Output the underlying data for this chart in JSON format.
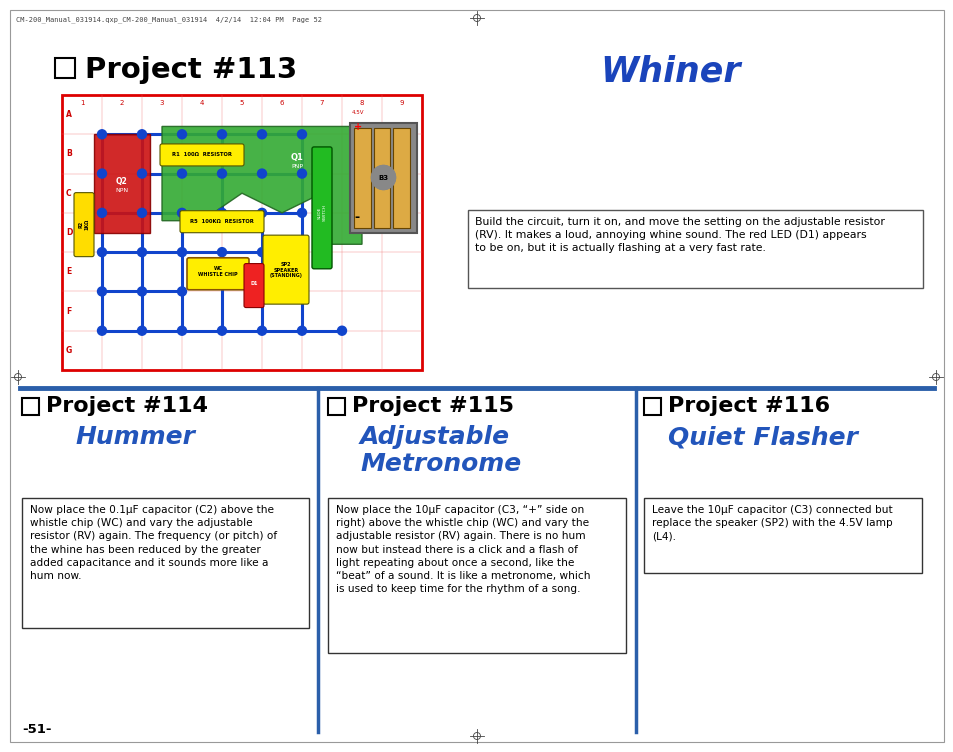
{
  "page_bg": "#ffffff",
  "header_line_color": "#2b5faa",
  "title_proj113": "Project #113",
  "title_whiner": "Whiner",
  "title_proj114": "Project #114",
  "subtitle_proj114": "Hummer",
  "title_proj115": "Project #115",
  "subtitle_proj115_line1": "Adjustable",
  "subtitle_proj115_line2": "Metronome",
  "title_proj116": "Project #116",
  "subtitle_proj116": "Quiet Flasher",
  "black_title_color": "#000000",
  "blue_subtitle_color": "#2255bb",
  "whiner_color": "#1a44bb",
  "header_text": "CM-200_Manual_031914.qxp_CM-200_Manual_031914  4/2/14  12:04 PM  Page 52",
  "desc_113": "Build the circuit, turn it on, and move the setting on the adjustable resistor\n(RV). It makes a loud, annoying whine sound. The red LED (D1) appears\nto be on, but it is actually flashing at a very fast rate.",
  "desc_114": "Now place the 0.1μF capacitor (C2) above the\nwhistle chip (WC) and vary the adjustable\nresistor (RV) again. The frequency (or pitch) of\nthe whine has been reduced by the greater\nadded capacitance and it sounds more like a\nhum now.",
  "desc_115": "Now place the 10μF capacitor (C3, “+” side on\nright) above the whistle chip (WC) and vary the\nadjustable resistor (RV) again. There is no hum\nnow but instead there is a click and a flash of\nlight repeating about once a second, like the\n“beat” of a sound. It is like a metronome, which\nis used to keep time for the rhythm of a song.",
  "desc_116": "Leave the 10μF capacitor (C3) connected but\nreplace the speaker (SP2) with the 4.5V lamp\n(L4).",
  "page_num": "-51-"
}
